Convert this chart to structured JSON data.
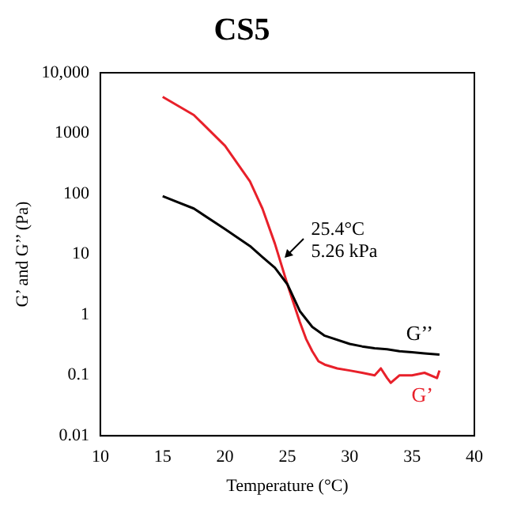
{
  "chart_data": {
    "type": "line",
    "title": "CS5",
    "xlabel": "Temperature (°C)",
    "ylabel": "G’ and G’’ (Pa)",
    "annotations": [
      "25.4°C\n5.26 kPa"
    ],
    "log": "y",
    "grid": false,
    "legend": false,
    "marker": "none",
    "line_style": "solid",
    "xlim": [
      10,
      40
    ],
    "xticks": [
      10,
      15,
      20,
      25,
      30,
      35,
      40
    ],
    "ylim": [
      0.01,
      10000
    ],
    "yticks": [
      0.01,
      0.1,
      1,
      10,
      100,
      1000,
      {
        "value": 10000,
        "label": "10,000"
      }
    ],
    "series": [
      {
        "name": "G’’",
        "color": "#000000",
        "x": [
          15,
          17.5,
          20,
          22,
          23,
          24,
          25,
          26,
          27,
          28,
          30,
          31,
          32,
          33,
          34,
          35,
          36,
          37.2
        ],
        "values": [
          91,
          57,
          26,
          13.7,
          9,
          6,
          3.2,
          1.15,
          0.63,
          0.45,
          0.33,
          0.3,
          0.28,
          0.27,
          0.25,
          0.24,
          0.23,
          0.22
        ]
      },
      {
        "name": "G’",
        "color": "#e8202a",
        "x": [
          15,
          17.5,
          20,
          22,
          23,
          24,
          25,
          26,
          26.5,
          27,
          27.5,
          28,
          29,
          30,
          31,
          32,
          32.5,
          33,
          33.3,
          34,
          35,
          36,
          37,
          37.2
        ],
        "values": [
          4000,
          2000,
          620,
          160,
          57,
          15,
          3.2,
          0.76,
          0.4,
          0.25,
          0.17,
          0.15,
          0.13,
          0.12,
          0.11,
          0.1,
          0.13,
          0.09,
          0.075,
          0.1,
          0.1,
          0.11,
          0.09,
          0.12
        ]
      }
    ]
  }
}
